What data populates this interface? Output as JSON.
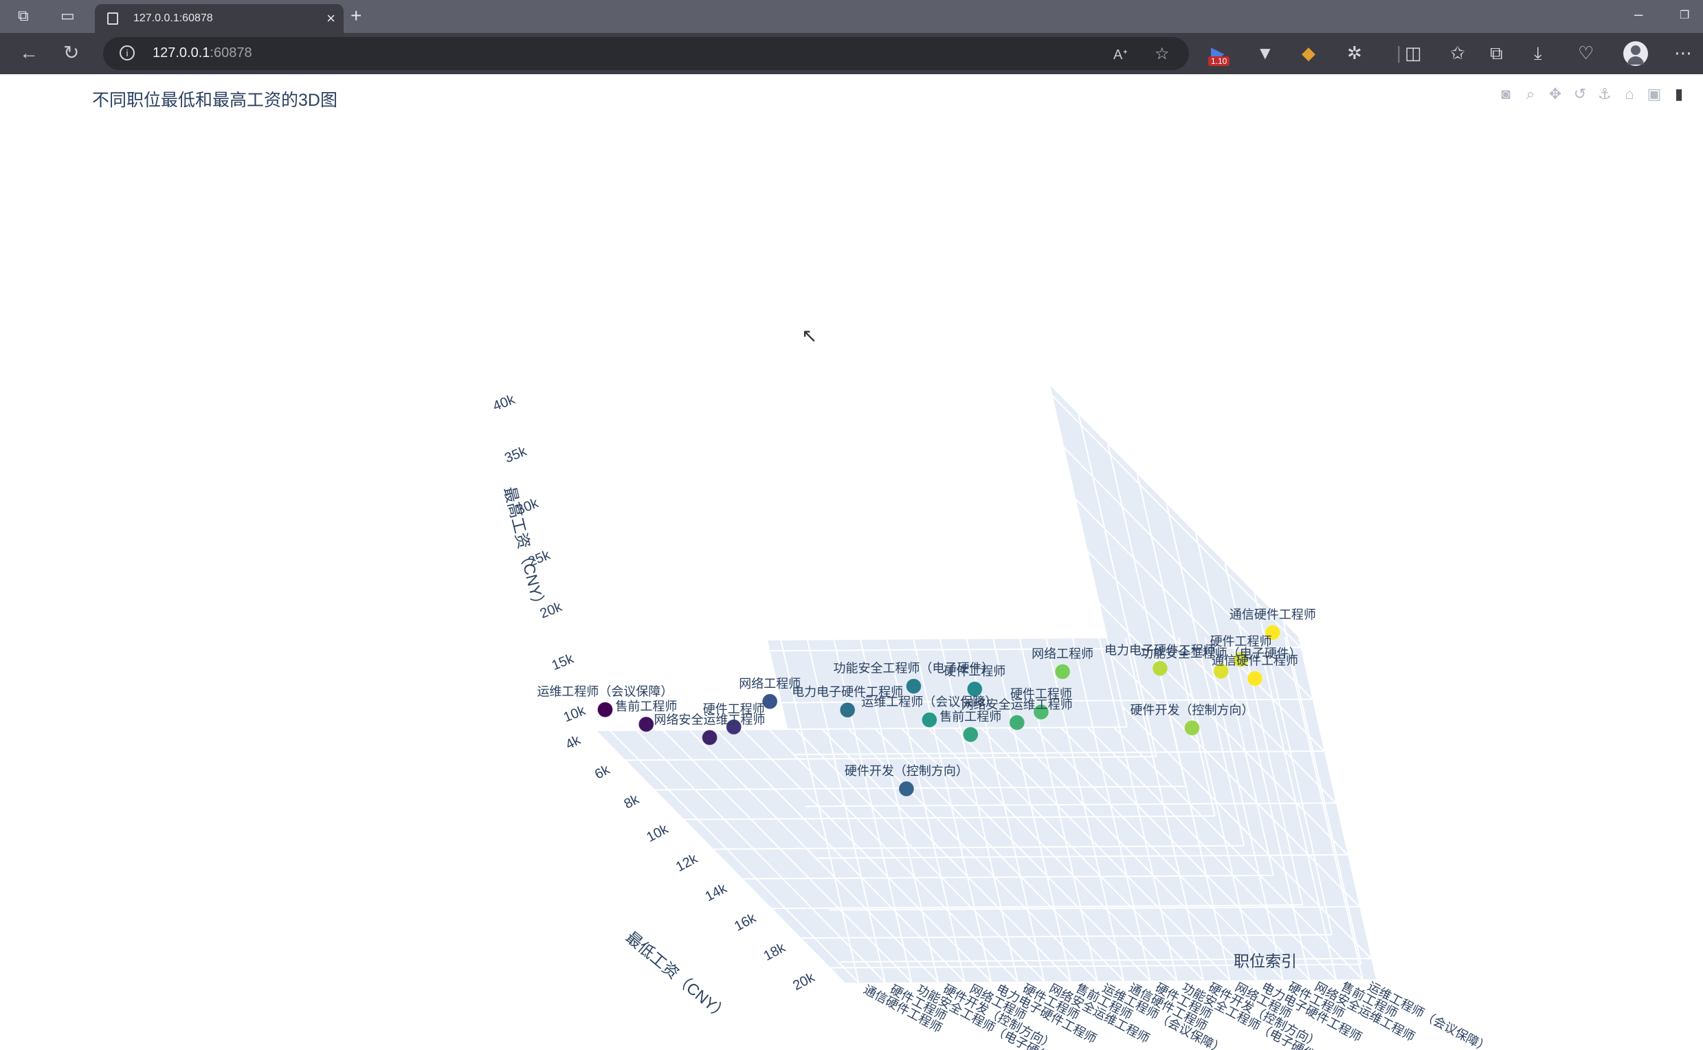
{
  "browser": {
    "tab_title": "127.0.0.1:60878",
    "url_host": "127.0.0.1",
    "url_port": ":60878",
    "extension_badge": "1.10"
  },
  "modebar": {
    "tools": [
      "camera-icon",
      "zoom-icon",
      "pan-icon",
      "orbit-icon",
      "turntable-icon",
      "home-icon",
      "camera-view-icon",
      "plotly-logo-icon"
    ]
  },
  "chart_data": {
    "type": "scatter3d",
    "title": "不同职位最低和最高工资的3D图",
    "xlabel": "最低工资（CNY）",
    "ylabel": "职位索引",
    "zlabel": "最高工资（CNY）",
    "x_ticks": [
      "4k",
      "6k",
      "8k",
      "10k",
      "12k",
      "14k",
      "16k",
      "18k",
      "20k"
    ],
    "x_range": [
      4000,
      21000
    ],
    "z_ticks": [
      "10k",
      "15k",
      "20k",
      "25k",
      "30k",
      "35k",
      "40k"
    ],
    "z_range": [
      8000,
      41000
    ],
    "y_ticks": [
      "通信硬件工程师",
      "硬件工程师",
      "功能安全工程师（电子硬件）",
      "硬件开发（控制方向）",
      "网络工程师",
      "电力电子硬件工程师",
      "硬件工程师",
      "网络安全运维工程师",
      "售前工程师",
      "运维工程师（会议保障）",
      "通信硬件工程师",
      "硬件工程师",
      "功能安全工程师（电子硬件）",
      "硬件开发（控制方向）",
      "网络工程师",
      "电力电子硬件工程师",
      "硬件工程师",
      "网络安全运维工程师",
      "售前工程师",
      "运维工程师（会议保障）"
    ],
    "colorscale": [
      "#440154",
      "#3b528b",
      "#21918c",
      "#5ec962",
      "#fde725"
    ],
    "points": [
      {
        "label": "运维工程师（会议保障）",
        "min": 4000,
        "max": 10000,
        "idx": 0
      },
      {
        "label": "售前工程师",
        "min": 5000,
        "max": 10000,
        "idx": 1
      },
      {
        "label": "网络安全运维工程师",
        "min": 8000,
        "max": 13000,
        "idx": 2
      },
      {
        "label": "硬件工程师",
        "min": 8000,
        "max": 14000,
        "idx": 3
      },
      {
        "label": "网络工程师",
        "min": 7000,
        "max": 15000,
        "idx": 5
      },
      {
        "label": "运维工程师（会议保障）",
        "min": 9000,
        "max": 16000,
        "idx": 10
      },
      {
        "label": "售前工程师",
        "min": 10000,
        "max": 16000,
        "idx": 11
      },
      {
        "label": "电力电子硬件工程师",
        "min": 9000,
        "max": 17000,
        "idx": 7
      },
      {
        "label": "网络安全运维工程师",
        "min": 12000,
        "max": 20000,
        "idx": 12
      },
      {
        "label": "硬件工程师",
        "min": 12000,
        "max": 21000,
        "idx": 13
      },
      {
        "label": "网络工程师",
        "min": 10000,
        "max": 22000,
        "idx": 15
      },
      {
        "label": "硬件开发（控制方向）",
        "min": 15000,
        "max": 18000,
        "idx": 6
      },
      {
        "label": "功能安全工程师（电子硬件）",
        "min": 13000,
        "max": 25000,
        "idx": 8
      },
      {
        "label": "电力电子硬件工程师",
        "min": 14000,
        "max": 28000,
        "idx": 17
      },
      {
        "label": "硬件工程师",
        "min": 16000,
        "max": 29000,
        "idx": 9
      },
      {
        "label": "硬件开发（控制方向）",
        "min": 18000,
        "max": 28000,
        "idx": 16
      },
      {
        "label": "功能安全工程师（电子硬件）",
        "min": 17000,
        "max": 32000,
        "idx": 18
      },
      {
        "label": "通信硬件工程师",
        "min": 17500,
        "max": 32000,
        "idx": 19
      },
      {
        "label": "硬件工程师",
        "min": 19000,
        "max": 36000,
        "idx": 18
      },
      {
        "label": "通信硬件工程师",
        "min": 20000,
        "max": 40000,
        "idx": 19
      }
    ]
  }
}
